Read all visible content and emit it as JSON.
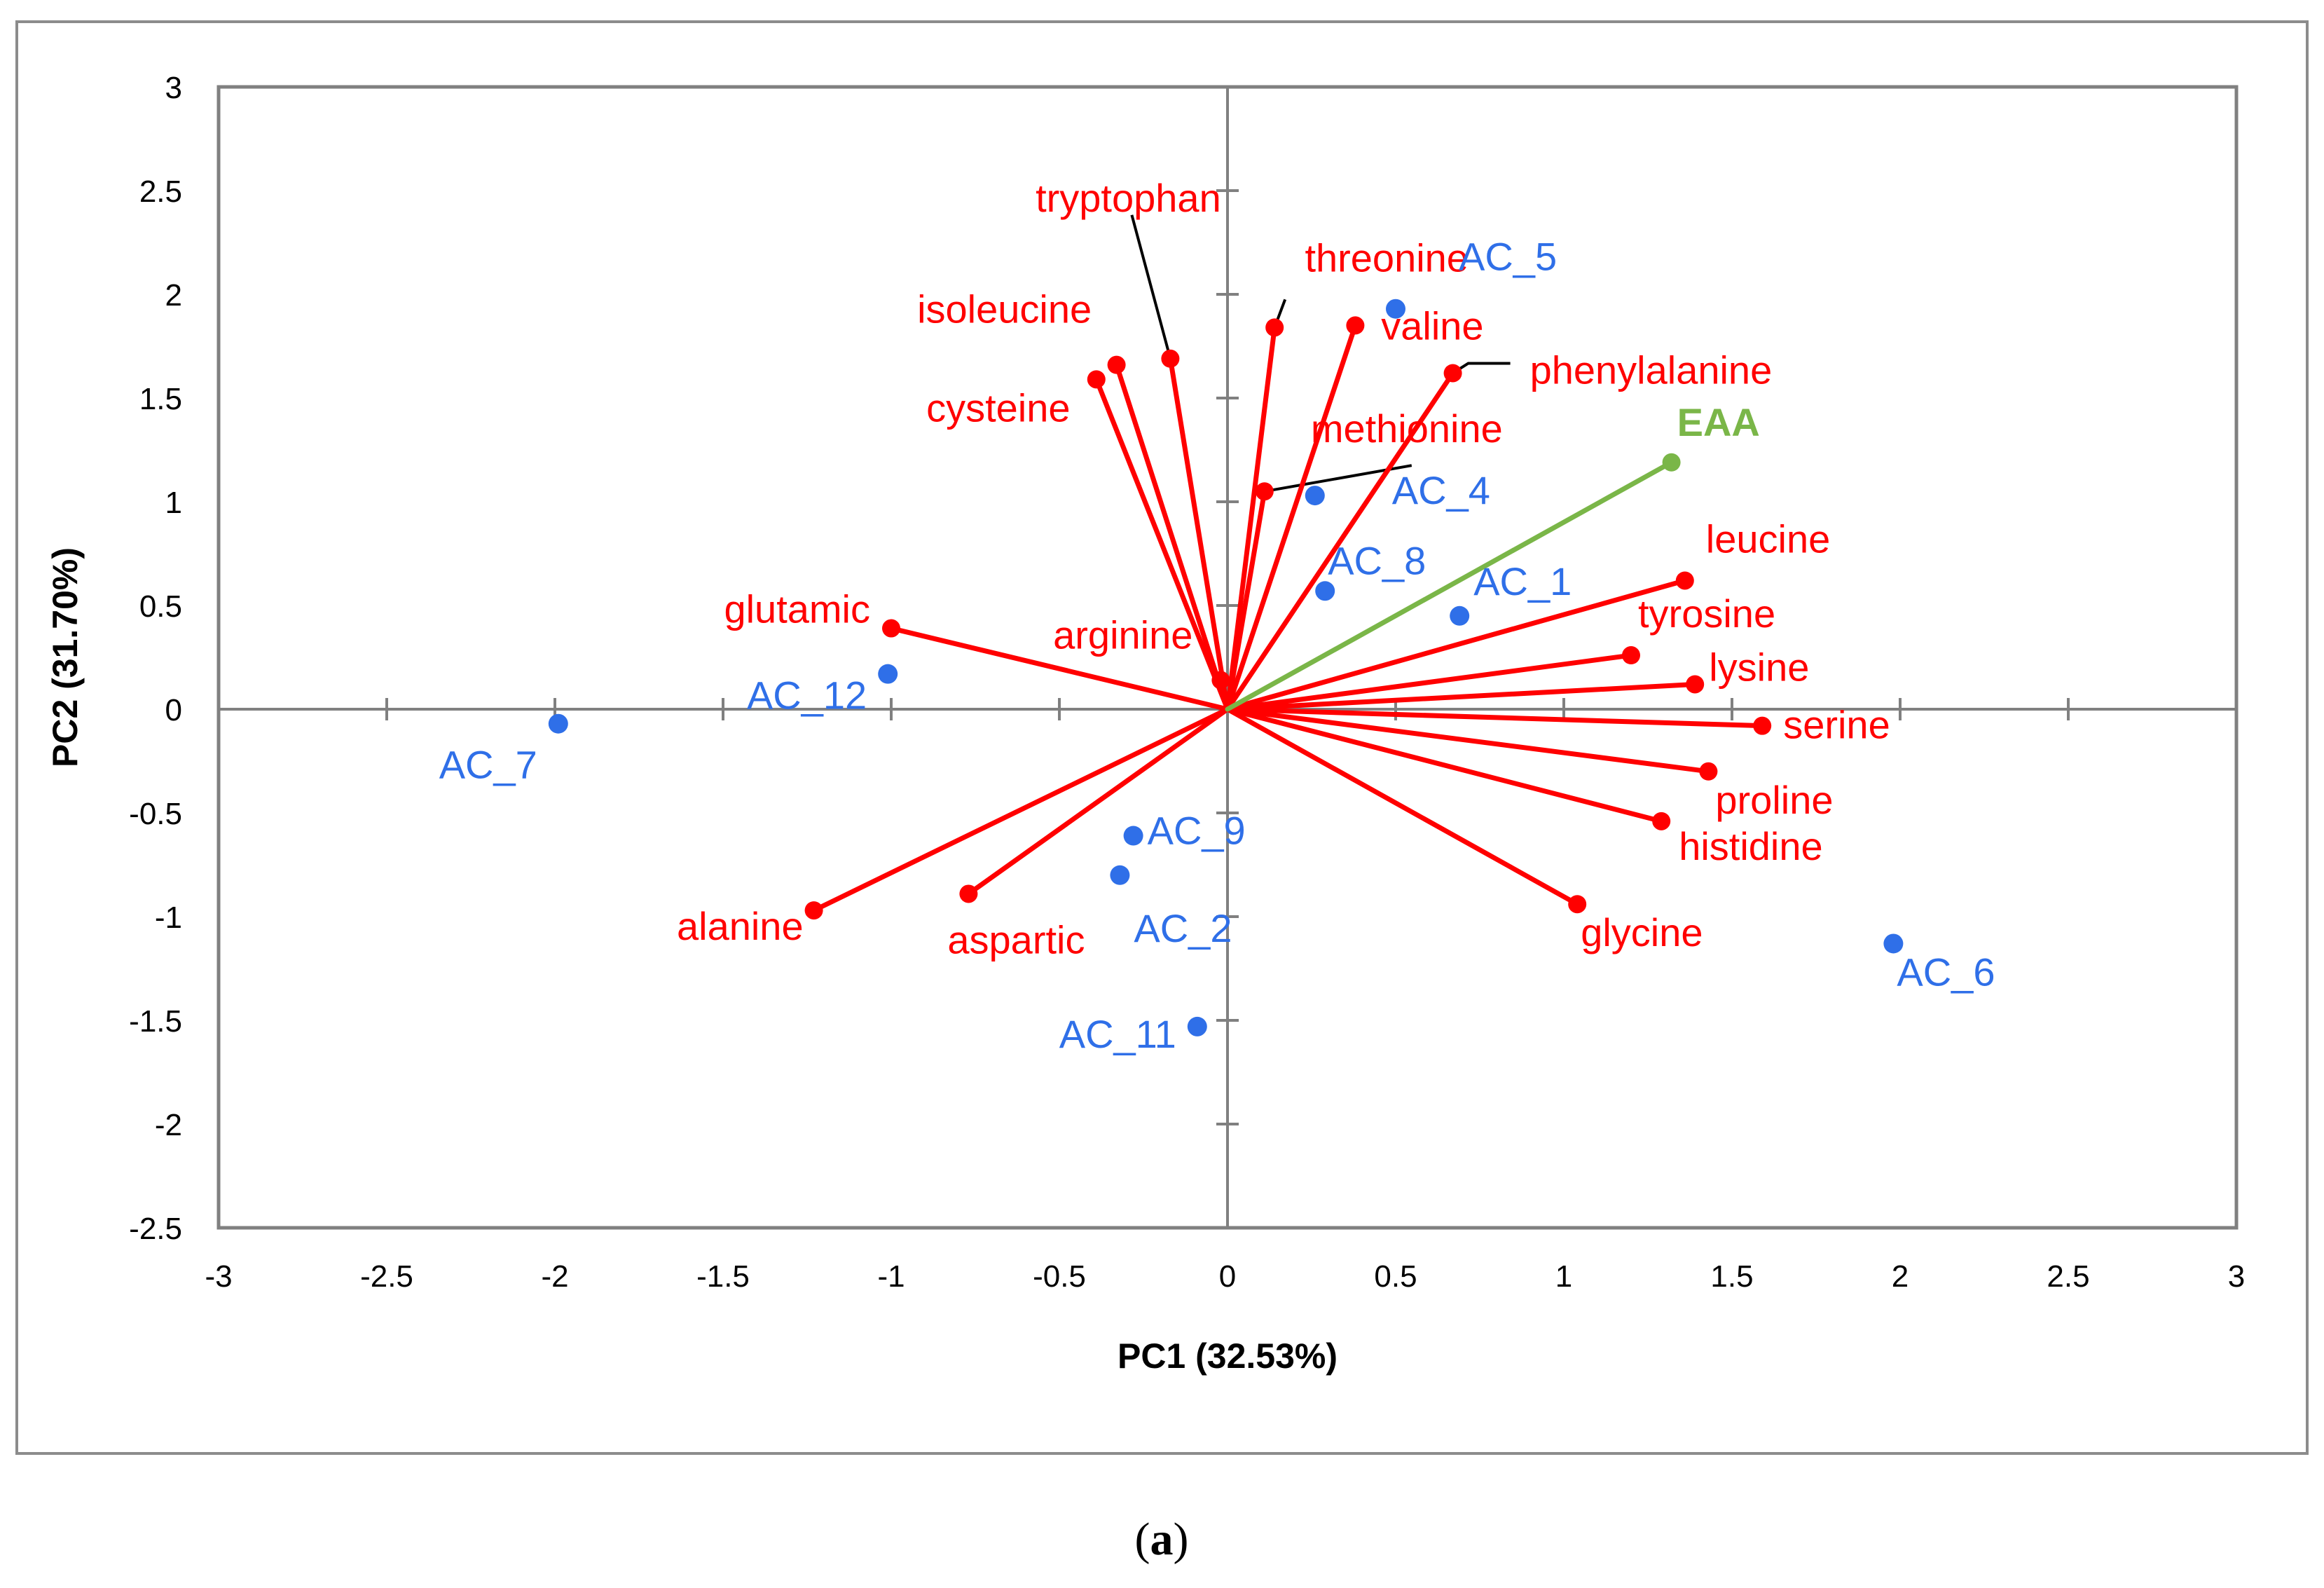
{
  "chart_data": {
    "type": "scatter",
    "subtype": "pca-biplot",
    "caption": {
      "open": "(",
      "letter": "a",
      "close": ")"
    },
    "xlabel": "PC1 (32.53%)",
    "ylabel": "PC2 (31.70%)",
    "xlim": [
      -3,
      3
    ],
    "ylim": [
      -2.5,
      3
    ],
    "xticks": [
      -3,
      -2.5,
      -2,
      -1.5,
      -1,
      -0.5,
      0,
      0.5,
      1,
      1.5,
      2,
      2.5,
      3
    ],
    "xtick_labels": [
      "-3",
      "-2.5",
      "-2",
      "-1.5",
      "-1",
      "-0.5",
      "0",
      "0.5",
      "1",
      "1.5",
      "2",
      "2.5",
      "3"
    ],
    "yticks": [
      3,
      2.5,
      2,
      1.5,
      1,
      0.5,
      0,
      -0.5,
      -1,
      -1.5,
      -2,
      -2.5
    ],
    "ytick_labels": [
      "3",
      "2.5",
      "2",
      "1.5",
      "1",
      "0.5",
      "0",
      "-0.5",
      "-1",
      "-1.5",
      "-2",
      "-2.5"
    ],
    "grid": false,
    "colors": {
      "variables": "#ff0000",
      "observations": "#2f6fe8",
      "supplementary": "#7ab648",
      "axes": "#808080"
    },
    "variables": [
      {
        "name": "tryptophan",
        "x": -0.17,
        "y": 1.69,
        "leader": true
      },
      {
        "name": "threonine",
        "x": 0.14,
        "y": 1.84,
        "leader": true
      },
      {
        "name": "valine",
        "x": 0.38,
        "y": 1.85,
        "leader": false
      },
      {
        "name": "isoleucine",
        "x": -0.33,
        "y": 1.66,
        "leader": false
      },
      {
        "name": "cysteine",
        "x": -0.39,
        "y": 1.59,
        "leader": false
      },
      {
        "name": "phenylalanine",
        "x": 0.67,
        "y": 1.62,
        "leader": true
      },
      {
        "name": "methionine",
        "x": 0.11,
        "y": 1.05,
        "leader": true
      },
      {
        "name": "leucine",
        "x": 1.36,
        "y": 0.62,
        "leader": false
      },
      {
        "name": "tyrosine",
        "x": 1.2,
        "y": 0.26,
        "leader": false
      },
      {
        "name": "lysine",
        "x": 1.39,
        "y": 0.12,
        "leader": false
      },
      {
        "name": "serine",
        "x": 1.59,
        "y": -0.08,
        "leader": false
      },
      {
        "name": "proline",
        "x": 1.43,
        "y": -0.3,
        "leader": false
      },
      {
        "name": "histidine",
        "x": 1.29,
        "y": -0.54,
        "leader": false
      },
      {
        "name": "glycine",
        "x": 1.04,
        "y": -0.94,
        "leader": false
      },
      {
        "name": "glutamic",
        "x": -1.0,
        "y": 0.39,
        "leader": false
      },
      {
        "name": "arginine",
        "x": -0.02,
        "y": 0.14,
        "leader": false
      },
      {
        "name": "alanine",
        "x": -1.23,
        "y": -0.97,
        "leader": false
      },
      {
        "name": "aspartic",
        "x": -0.77,
        "y": -0.89,
        "leader": false
      }
    ],
    "supplementary": [
      {
        "name": "EAA",
        "x": 1.32,
        "y": 1.19
      }
    ],
    "observations": [
      {
        "name": "AC_1",
        "x": 0.69,
        "y": 0.45
      },
      {
        "name": "AC_2",
        "x": -0.32,
        "y": -0.8
      },
      {
        "name": "AC_4",
        "x": 0.26,
        "y": 1.03
      },
      {
        "name": "AC_5",
        "x": 0.5,
        "y": 1.93
      },
      {
        "name": "AC_6",
        "x": 1.98,
        "y": -1.13
      },
      {
        "name": "AC_7",
        "x": -1.99,
        "y": -0.07
      },
      {
        "name": "AC_8",
        "x": 0.29,
        "y": 0.57
      },
      {
        "name": "AC_9",
        "x": -0.28,
        "y": -0.61
      },
      {
        "name": "AC_11",
        "x": -0.09,
        "y": -1.53
      },
      {
        "name": "AC_12",
        "x": -1.01,
        "y": 0.17
      }
    ]
  }
}
